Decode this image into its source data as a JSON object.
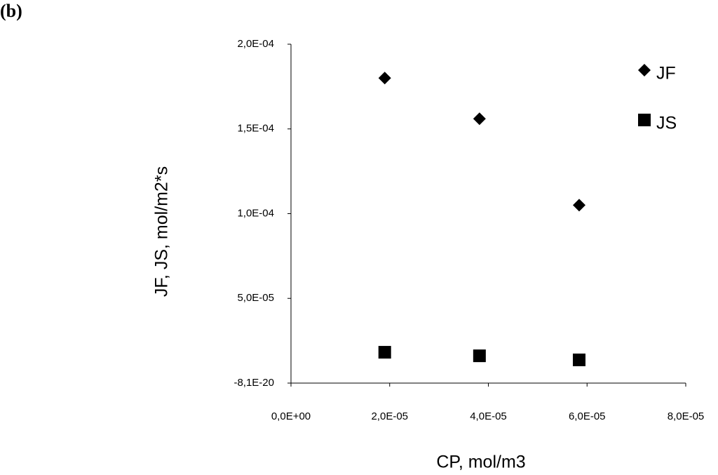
{
  "chart_data": {
    "type": "scatter",
    "panel_label": "(b)",
    "x_label": "CP, mol/m3",
    "y_label": "JF, JS, mol/m2*s",
    "xlim": [
      0,
      8e-05
    ],
    "xticks": [
      {
        "value": 0,
        "label": "0,0E+00"
      },
      {
        "value": 2e-05,
        "label": "2,0E-05"
      },
      {
        "value": 4e-05,
        "label": "4,0E-05"
      },
      {
        "value": 6e-05,
        "label": "6,0E-05"
      },
      {
        "value": 8e-05,
        "label": "8,0E-05"
      }
    ],
    "ylim": [
      -8.1e-20,
      0.0002
    ],
    "yticks": [
      {
        "value": -8.1e-20,
        "label": "-8,1E-20"
      },
      {
        "value": 5e-05,
        "label": "5,0E-05"
      },
      {
        "value": 0.0001,
        "label": "1,0E-04"
      },
      {
        "value": 0.00015,
        "label": "1,5E-04"
      },
      {
        "value": 0.0002,
        "label": "2,0E-04"
      }
    ],
    "grid": false,
    "legend": "upper right",
    "series": [
      {
        "name": "JF",
        "color": "#000000",
        "marker": "diamond",
        "x": [
          1.9e-05,
          3.82e-05,
          5.84e-05
        ],
        "values": [
          0.00018,
          0.000156,
          0.000105
        ]
      },
      {
        "name": "JS",
        "color": "#000000",
        "marker": "square",
        "x": [
          1.9e-05,
          3.82e-05,
          5.84e-05
        ],
        "values": [
          1.82e-05,
          1.61e-05,
          1.37e-05
        ]
      }
    ]
  }
}
